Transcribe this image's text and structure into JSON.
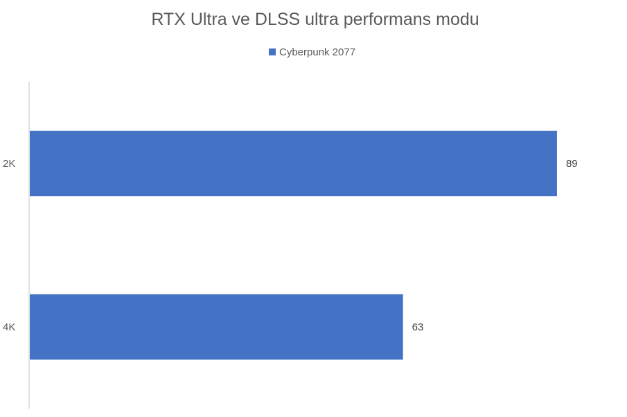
{
  "chart_data": {
    "type": "bar",
    "orientation": "horizontal",
    "title": "RTX Ultra ve DLSS ultra performans modu",
    "categories": [
      "2K",
      "4K"
    ],
    "series": [
      {
        "name": "Cyberpunk 2077",
        "values": [
          89,
          63
        ],
        "color": "#4472C4"
      }
    ],
    "data_labels": [
      "89",
      "63"
    ],
    "xlim": [
      0,
      100
    ],
    "grid": false,
    "legend": "top-center"
  },
  "colors": {
    "bar": "#4472C4",
    "text": "#595959",
    "axis": "#D9D9D9"
  }
}
